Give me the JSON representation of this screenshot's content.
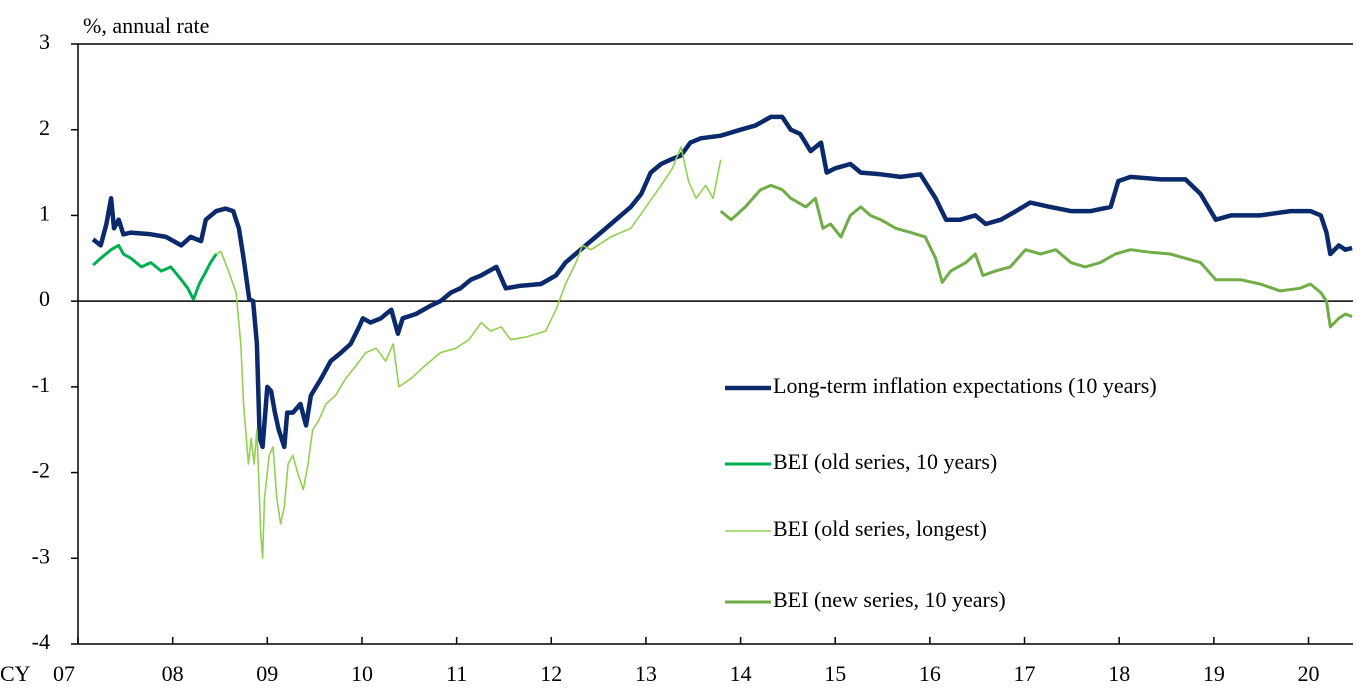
{
  "chart_data": {
    "type": "line",
    "y_label": "%, annual rate",
    "x_label": "CY",
    "xlim": [
      2007,
      2020.47
    ],
    "xticks": [
      {
        "value": 2007,
        "label": "07"
      },
      {
        "value": 2008,
        "label": "08"
      },
      {
        "value": 2009,
        "label": "09"
      },
      {
        "value": 2010,
        "label": "10"
      },
      {
        "value": 2011,
        "label": "11"
      },
      {
        "value": 2012,
        "label": "12"
      },
      {
        "value": 2013,
        "label": "13"
      },
      {
        "value": 2014,
        "label": "14"
      },
      {
        "value": 2015,
        "label": "15"
      },
      {
        "value": 2016,
        "label": "16"
      },
      {
        "value": 2017,
        "label": "17"
      },
      {
        "value": 2018,
        "label": "18"
      },
      {
        "value": 2019,
        "label": "19"
      },
      {
        "value": 2020,
        "label": "20"
      }
    ],
    "ylim": [
      -4,
      3
    ],
    "yticks": [
      -4,
      -3,
      -2,
      -1,
      0,
      1,
      2,
      3
    ],
    "legend": "right",
    "series": [
      {
        "name": "Long-term inflation expectations (10 years)",
        "color": "#0b2a6b",
        "width": 4.5,
        "x": [
          2007.16,
          2007.24,
          2007.3,
          2007.35,
          2007.38,
          2007.43,
          2007.48,
          2007.56,
          2007.77,
          2007.93,
          2008.09,
          2008.19,
          2008.3,
          2008.35,
          2008.46,
          2008.56,
          2008.64,
          2008.7,
          2008.75,
          2008.81,
          2008.85,
          2008.89,
          2008.92,
          2008.95,
          2009.0,
          2009.04,
          2009.08,
          2009.12,
          2009.18,
          2009.21,
          2009.27,
          2009.35,
          2009.41,
          2009.46,
          2009.57,
          2009.67,
          2009.78,
          2009.88,
          2009.97,
          2010.01,
          2010.09,
          2010.2,
          2010.31,
          2010.38,
          2010.43,
          2010.57,
          2010.73,
          2010.83,
          2010.94,
          2011.04,
          2011.15,
          2011.26,
          2011.42,
          2011.52,
          2011.68,
          2011.89,
          2012.05,
          2012.15,
          2012.31,
          2012.47,
          2012.63,
          2012.84,
          2012.95,
          2013.05,
          2013.16,
          2013.26,
          2013.37,
          2013.47,
          2013.58,
          2013.79,
          2014.0,
          2014.16,
          2014.32,
          2014.44,
          2014.53,
          2014.63,
          2014.74,
          2014.85,
          2014.91,
          2015.0,
          2015.16,
          2015.27,
          2015.48,
          2015.69,
          2015.9,
          2016.06,
          2016.17,
          2016.32,
          2016.48,
          2016.59,
          2016.75,
          2016.91,
          2017.06,
          2017.27,
          2017.49,
          2017.7,
          2017.91,
          2017.99,
          2018.12,
          2018.44,
          2018.7,
          2018.86,
          2019.02,
          2019.18,
          2019.49,
          2019.81,
          2020.02,
          2020.13,
          2020.19,
          2020.23,
          2020.32,
          2020.39,
          2020.46
        ],
        "values": [
          0.72,
          0.65,
          0.9,
          1.2,
          0.85,
          0.95,
          0.78,
          0.8,
          0.78,
          0.75,
          0.65,
          0.75,
          0.7,
          0.95,
          1.05,
          1.08,
          1.05,
          0.85,
          0.5,
          0.02,
          0.0,
          -0.5,
          -1.6,
          -1.7,
          -1.0,
          -1.05,
          -1.3,
          -1.5,
          -1.7,
          -1.3,
          -1.3,
          -1.2,
          -1.45,
          -1.1,
          -0.9,
          -0.7,
          -0.6,
          -0.5,
          -0.3,
          -0.2,
          -0.25,
          -0.2,
          -0.1,
          -0.38,
          -0.2,
          -0.15,
          -0.05,
          0.0,
          0.1,
          0.15,
          0.25,
          0.3,
          0.4,
          0.15,
          0.18,
          0.2,
          0.3,
          0.45,
          0.6,
          0.75,
          0.9,
          1.1,
          1.25,
          1.5,
          1.6,
          1.65,
          1.7,
          1.85,
          1.9,
          1.93,
          2.0,
          2.05,
          2.15,
          2.15,
          2.0,
          1.95,
          1.75,
          1.85,
          1.5,
          1.55,
          1.6,
          1.5,
          1.48,
          1.45,
          1.48,
          1.2,
          0.95,
          0.95,
          1.0,
          0.9,
          0.95,
          1.05,
          1.15,
          1.1,
          1.05,
          1.05,
          1.1,
          1.4,
          1.45,
          1.42,
          1.42,
          1.25,
          0.95,
          1.0,
          1.0,
          1.05,
          1.05,
          1.0,
          0.8,
          0.55,
          0.65,
          0.6,
          0.62
        ]
      },
      {
        "name": "BEI (old series, 10 years)",
        "color": "#00b050",
        "width": 3,
        "x": [
          2007.16,
          2007.24,
          2007.35,
          2007.43,
          2007.48,
          2007.56,
          2007.67,
          2007.77,
          2007.88,
          2007.98,
          2008.09,
          2008.16,
          2008.22,
          2008.28,
          2008.33,
          2008.4,
          2008.46
        ],
        "values": [
          0.42,
          0.5,
          0.6,
          0.65,
          0.55,
          0.5,
          0.4,
          0.45,
          0.35,
          0.4,
          0.25,
          0.15,
          0.02,
          0.2,
          0.3,
          0.45,
          0.55
        ]
      },
      {
        "name": "BEI (old series, longest)",
        "color": "#92d050",
        "width": 1.6,
        "x": [
          2008.46,
          2008.51,
          2008.59,
          2008.67,
          2008.72,
          2008.75,
          2008.8,
          2008.83,
          2008.86,
          2008.89,
          2008.93,
          2008.95,
          2008.97,
          2009.02,
          2009.06,
          2009.1,
          2009.14,
          2009.18,
          2009.22,
          2009.27,
          2009.32,
          2009.38,
          2009.43,
          2009.48,
          2009.54,
          2009.62,
          2009.72,
          2009.83,
          2009.94,
          2010.04,
          2010.15,
          2010.25,
          2010.33,
          2010.39,
          2010.52,
          2010.67,
          2010.83,
          2010.99,
          2011.13,
          2011.26,
          2011.36,
          2011.47,
          2011.57,
          2011.73,
          2011.94,
          2012.05,
          2012.15,
          2012.26,
          2012.33,
          2012.42,
          2012.63,
          2012.84,
          2013.0,
          2013.16,
          2013.28,
          2013.37,
          2013.45,
          2013.53,
          2013.63,
          2013.71,
          2013.79
        ],
        "values": [
          0.55,
          0.58,
          0.35,
          0.1,
          -0.5,
          -1.2,
          -1.9,
          -1.6,
          -1.9,
          -1.5,
          -2.7,
          -3.0,
          -2.3,
          -1.8,
          -1.7,
          -2.3,
          -2.6,
          -2.4,
          -1.9,
          -1.8,
          -2.0,
          -2.2,
          -1.9,
          -1.5,
          -1.4,
          -1.2,
          -1.1,
          -0.9,
          -0.75,
          -0.6,
          -0.55,
          -0.7,
          -0.5,
          -1.0,
          -0.9,
          -0.75,
          -0.6,
          -0.55,
          -0.45,
          -0.25,
          -0.35,
          -0.3,
          -0.45,
          -0.42,
          -0.35,
          -0.1,
          0.2,
          0.45,
          0.65,
          0.6,
          0.75,
          0.85,
          1.1,
          1.35,
          1.55,
          1.8,
          1.4,
          1.2,
          1.35,
          1.2,
          1.65
        ]
      },
      {
        "name": "BEI (new series, 10 years)",
        "color": "#70ad47",
        "width": 3,
        "x": [
          2013.79,
          2013.9,
          2014.05,
          2014.21,
          2014.32,
          2014.44,
          2014.53,
          2014.69,
          2014.79,
          2014.87,
          2014.95,
          2015.06,
          2015.16,
          2015.27,
          2015.37,
          2015.48,
          2015.64,
          2015.8,
          2015.95,
          2016.06,
          2016.13,
          2016.22,
          2016.38,
          2016.48,
          2016.56,
          2016.69,
          2016.85,
          2017.01,
          2017.17,
          2017.33,
          2017.49,
          2017.64,
          2017.8,
          2017.96,
          2018.12,
          2018.33,
          2018.54,
          2018.7,
          2018.86,
          2019.02,
          2019.28,
          2019.49,
          2019.7,
          2019.91,
          2020.02,
          2020.13,
          2020.19,
          2020.23,
          2020.32,
          2020.39,
          2020.46
        ],
        "values": [
          1.05,
          0.95,
          1.1,
          1.3,
          1.35,
          1.3,
          1.2,
          1.1,
          1.2,
          0.85,
          0.9,
          0.75,
          1.0,
          1.1,
          1.0,
          0.95,
          0.85,
          0.8,
          0.75,
          0.5,
          0.22,
          0.35,
          0.45,
          0.55,
          0.3,
          0.35,
          0.4,
          0.6,
          0.55,
          0.6,
          0.45,
          0.4,
          0.45,
          0.55,
          0.6,
          0.57,
          0.55,
          0.5,
          0.45,
          0.25,
          0.25,
          0.2,
          0.12,
          0.15,
          0.2,
          0.1,
          0.0,
          -0.3,
          -0.2,
          -0.15,
          -0.18
        ]
      }
    ]
  }
}
